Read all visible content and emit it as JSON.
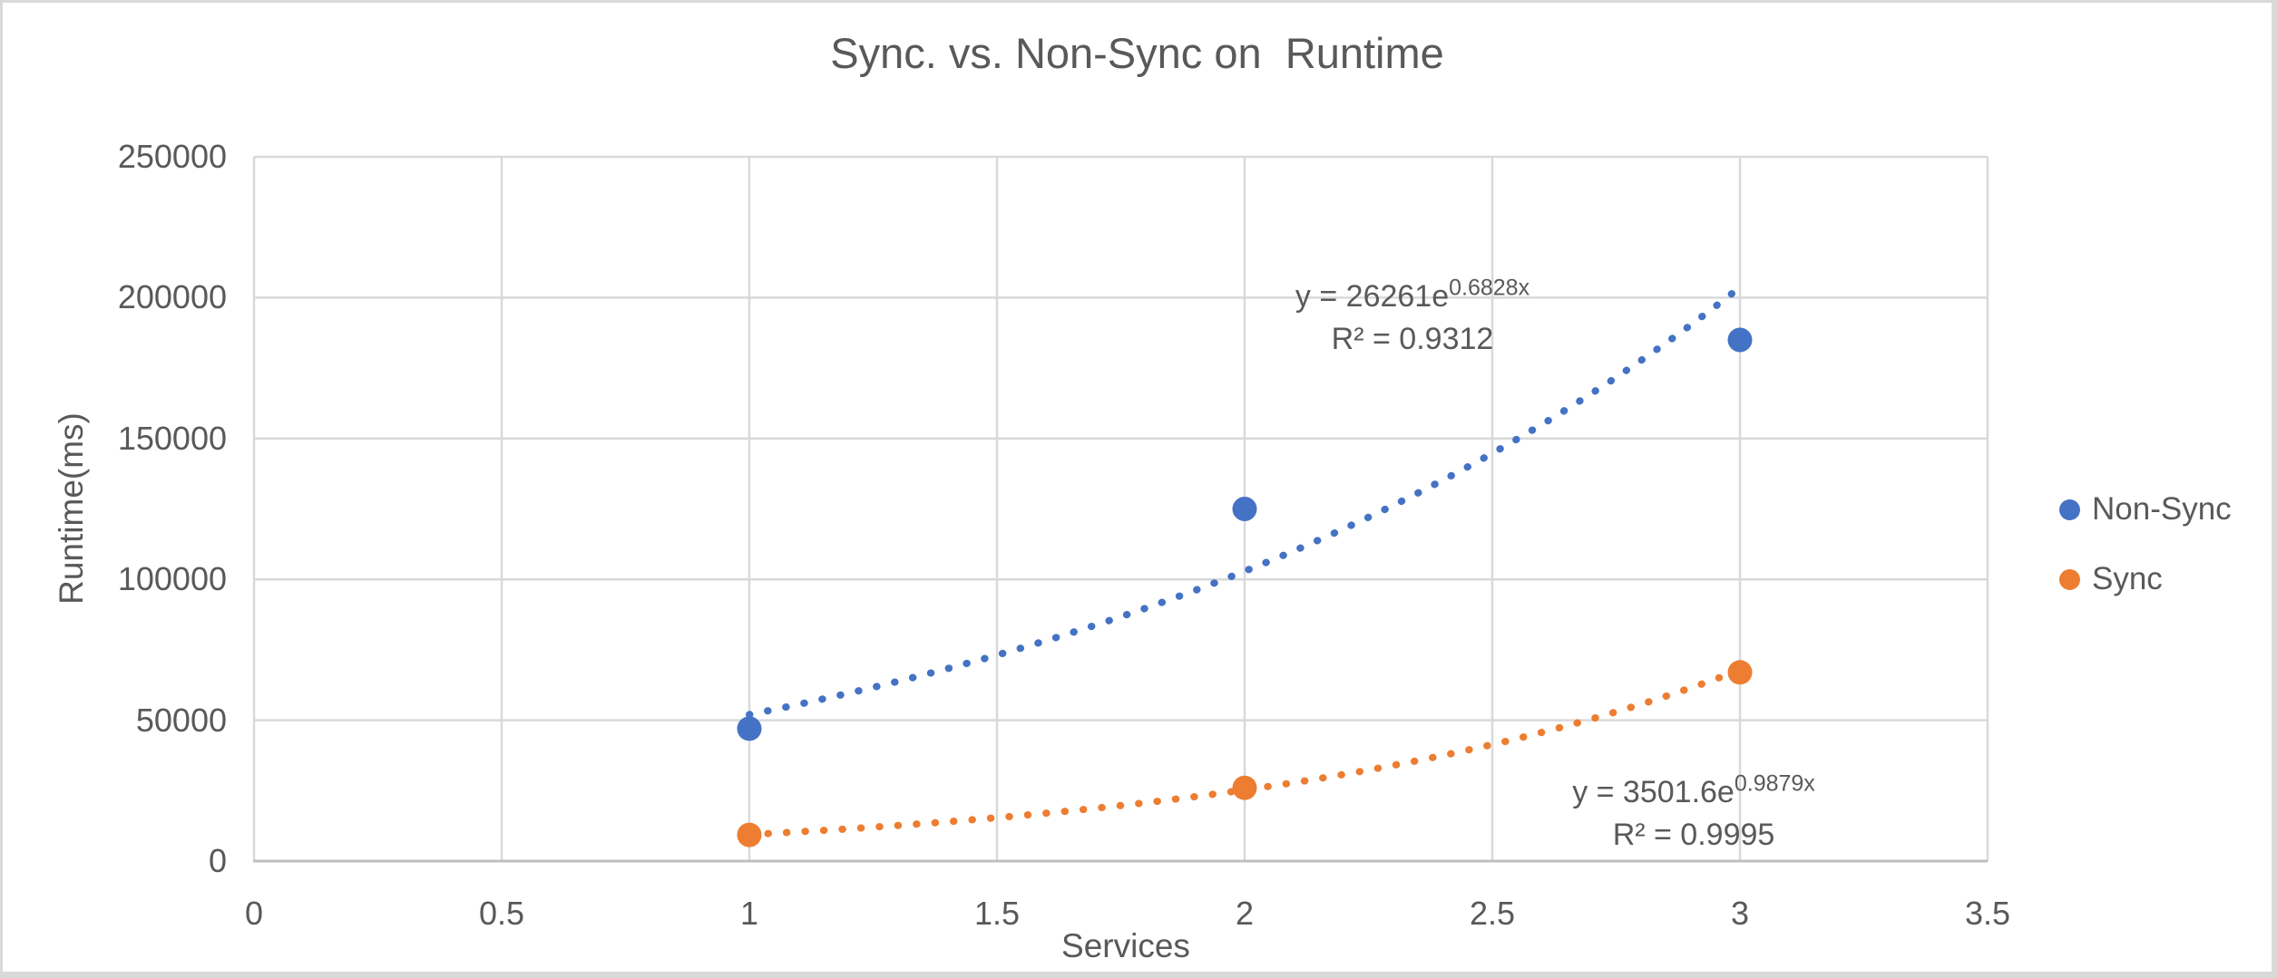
{
  "chart_data": {
    "type": "scatter",
    "title": "Sync. vs. Non-Sync on  Runtime",
    "xlabel": "Services",
    "ylabel": "Runtime(ms)",
    "xlim": [
      0,
      3.5
    ],
    "ylim": [
      0,
      250000
    ],
    "xticks": [
      "0",
      "0.5",
      "1",
      "1.5",
      "2",
      "2.5",
      "3",
      "3.5"
    ],
    "yticks": [
      "0",
      "50000",
      "100000",
      "150000",
      "200000",
      "250000"
    ],
    "grid": true,
    "legend_position": "right",
    "series": [
      {
        "name": "Non-Sync",
        "color": "#4472C4",
        "points": [
          {
            "x": 1,
            "y": 47000
          },
          {
            "x": 2,
            "y": 125000
          },
          {
            "x": 3,
            "y": 185000
          }
        ],
        "trendline": {
          "type": "exponential",
          "a": 26261,
          "b": 0.6828,
          "x_start": 1.0,
          "x_end": 3.01,
          "equation_base": "y = 26261e",
          "equation_exponent": "0.6828x",
          "r_squared": "R² = 0.9312"
        }
      },
      {
        "name": "Sync",
        "color": "#ED7D31",
        "points": [
          {
            "x": 1,
            "y": 9300
          },
          {
            "x": 2,
            "y": 26000
          },
          {
            "x": 3,
            "y": 67000
          }
        ],
        "trendline": {
          "type": "exponential",
          "a": 3501.6,
          "b": 0.9879,
          "x_start": 1.0,
          "x_end": 3.0,
          "equation_base": "y = 3501.6e",
          "equation_exponent": "0.9879x",
          "r_squared": "R² = 0.9995"
        }
      }
    ],
    "colors": {
      "gridline": "#D9D9D9",
      "axis": "#BFBFBF",
      "text": "#595959",
      "frame_border": "#D9D9D9",
      "background": "#FFFFFF"
    }
  }
}
